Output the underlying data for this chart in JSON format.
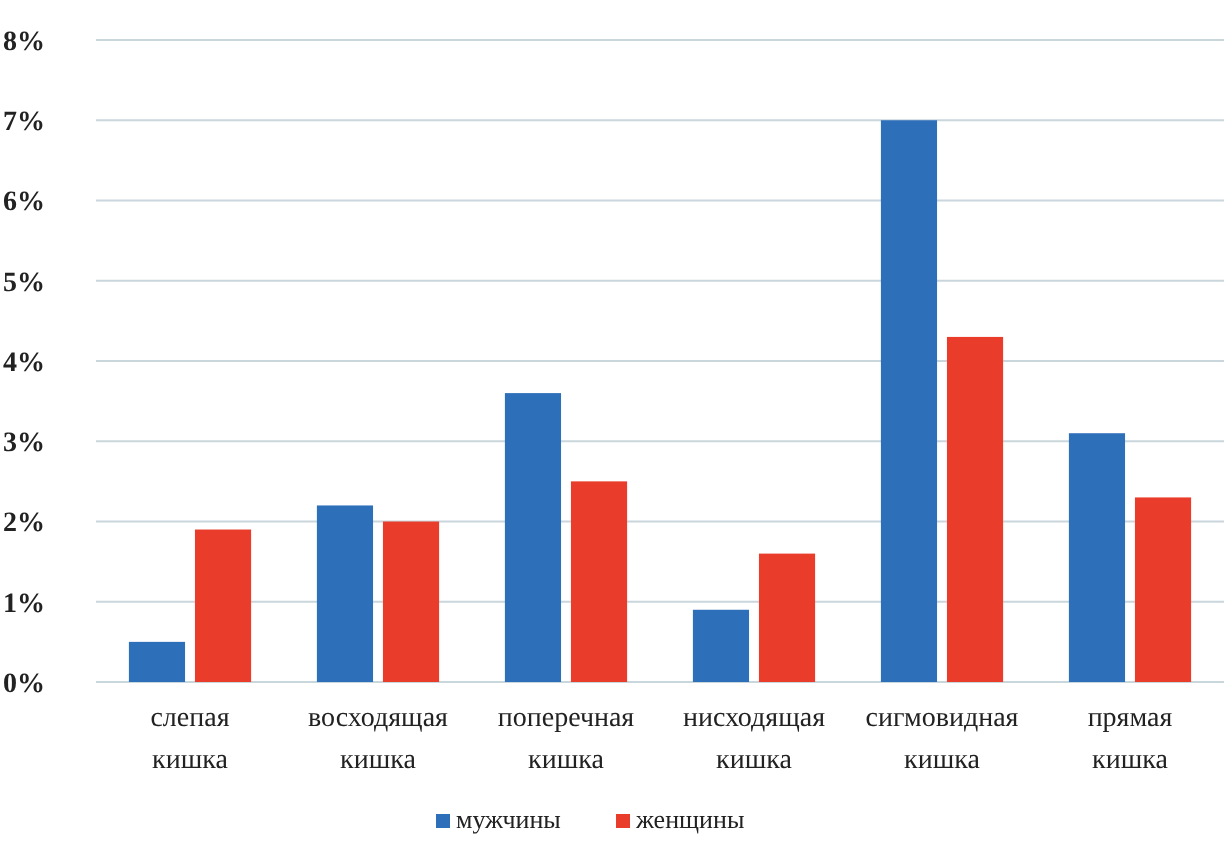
{
  "chart_data": {
    "type": "bar",
    "categories": [
      "слепая кишка",
      "восходящая кишка",
      "поперечная кишка",
      "нисходящая кишка",
      "сигмовидная кишка",
      "прямая кишка"
    ],
    "series": [
      {
        "name": "мужчины",
        "color": "#2e6fba",
        "values": [
          0.5,
          2.2,
          3.6,
          0.9,
          7.0,
          3.1
        ]
      },
      {
        "name": "женщины",
        "color": "#e93c2b",
        "values": [
          1.9,
          2.0,
          2.5,
          1.6,
          4.3,
          2.3
        ]
      }
    ],
    "ylim": [
      0,
      8
    ],
    "yticks": [
      {
        "value": 0,
        "label": "0%"
      },
      {
        "value": 1,
        "label": "1%"
      },
      {
        "value": 2,
        "label": "2%"
      },
      {
        "value": 3,
        "label": "3%"
      },
      {
        "value": 4,
        "label": "4%"
      },
      {
        "value": 5,
        "label": "5%"
      },
      {
        "value": 6,
        "label": "6%"
      },
      {
        "value": 7,
        "label": "7%"
      },
      {
        "value": 8,
        "label": "8%"
      }
    ],
    "grid": "y",
    "legend": "bottom"
  }
}
